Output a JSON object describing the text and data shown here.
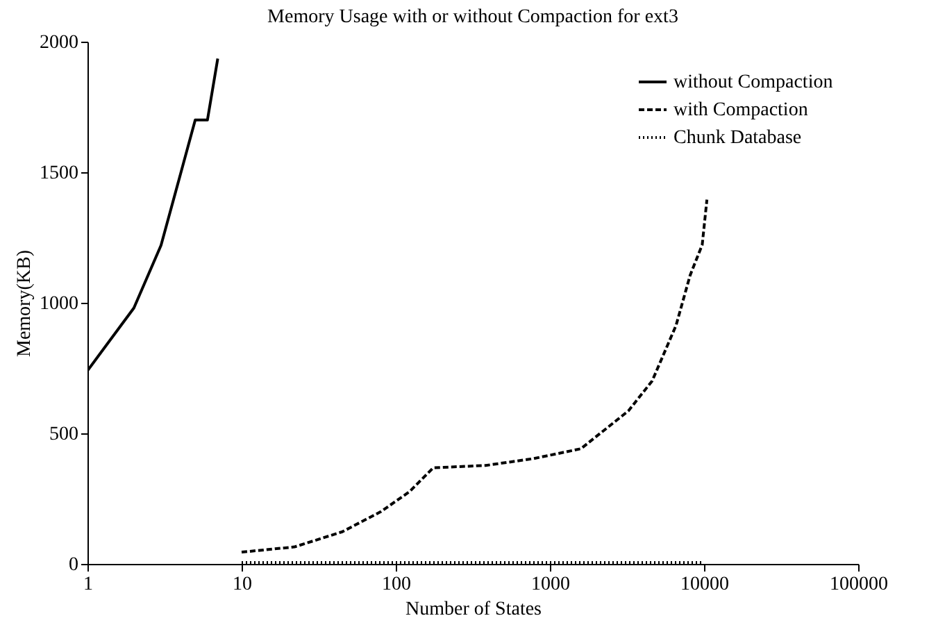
{
  "chart_data": {
    "type": "line",
    "title": "Memory Usage with or without Compaction for ext3",
    "xlabel": "Number of States",
    "ylabel": "Memory(KB)",
    "log": "x",
    "xlim": [
      1,
      100000
    ],
    "xticks": [
      1,
      10,
      100,
      1000,
      10000,
      100000
    ],
    "ylim": [
      0,
      2000
    ],
    "yticks": [
      0,
      500,
      1000,
      1500,
      2000
    ],
    "grid": false,
    "legend": "top right",
    "marker": "none",
    "series": [
      {
        "name": "without Compaction",
        "color": "#000000",
        "line_style": "solid",
        "x": [
          1,
          2,
          3,
          4,
          5,
          6,
          7
        ],
        "values": [
          740,
          980,
          1220,
          1490,
          1700,
          1700,
          1935
        ]
      },
      {
        "name": "with Compaction",
        "color": "#000000",
        "line_style": "dashed",
        "x": [
          10,
          22,
          45,
          80,
          123,
          175,
          383,
          780,
          1590,
          3230,
          4610,
          6580,
          8130,
          9730,
          10440
        ],
        "values": [
          45,
          65,
          123,
          200,
          277,
          368,
          377,
          403,
          441,
          586,
          701,
          913,
          1106,
          1222,
          1395
        ]
      },
      {
        "name": "Chunk Database",
        "color": "#000000",
        "line_style": "dotted",
        "x": [
          10,
          10000
        ],
        "values": [
          5,
          5
        ]
      }
    ]
  }
}
